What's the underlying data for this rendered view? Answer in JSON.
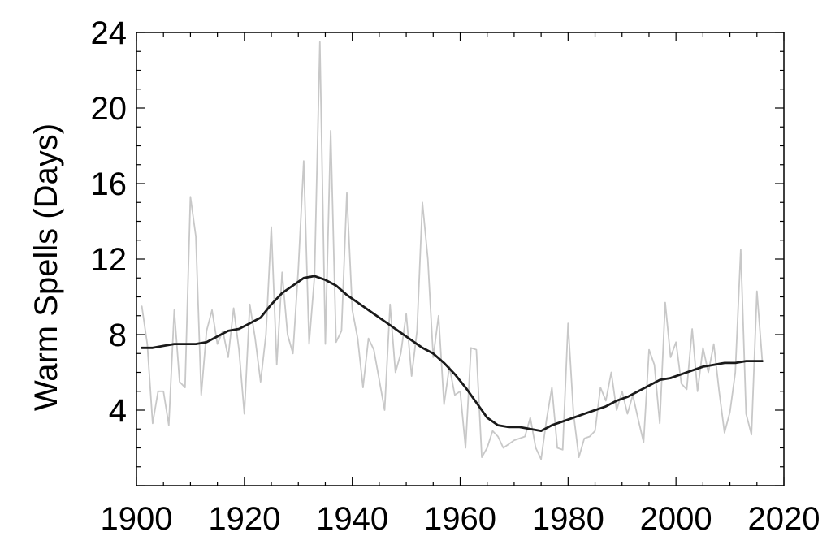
{
  "chart_data": {
    "type": "line",
    "title": "",
    "xlabel": "",
    "ylabel": "Warm Spells (Days)",
    "xlim": [
      1900,
      2020
    ],
    "ylim": [
      0,
      24
    ],
    "xticks": [
      1900,
      1920,
      1940,
      1960,
      1980,
      2000,
      2020
    ],
    "yticks": [
      4,
      8,
      12,
      16,
      20,
      24
    ],
    "grid": false,
    "legend": "none",
    "series": [
      {
        "role": "annual",
        "color": "#c8c8c8",
        "x": [
          1901,
          1902,
          1903,
          1904,
          1905,
          1906,
          1907,
          1908,
          1909,
          1910,
          1911,
          1912,
          1913,
          1914,
          1915,
          1916,
          1917,
          1918,
          1919,
          1920,
          1921,
          1922,
          1923,
          1924,
          1925,
          1926,
          1927,
          1928,
          1929,
          1930,
          1931,
          1932,
          1933,
          1934,
          1935,
          1936,
          1937,
          1938,
          1939,
          1940,
          1941,
          1942,
          1943,
          1944,
          1945,
          1946,
          1947,
          1948,
          1949,
          1950,
          1951,
          1952,
          1953,
          1954,
          1955,
          1956,
          1957,
          1958,
          1959,
          1960,
          1961,
          1962,
          1963,
          1964,
          1965,
          1966,
          1967,
          1968,
          1969,
          1970,
          1971,
          1972,
          1973,
          1974,
          1975,
          1976,
          1977,
          1978,
          1979,
          1980,
          1981,
          1982,
          1983,
          1984,
          1985,
          1986,
          1987,
          1988,
          1989,
          1990,
          1991,
          1992,
          1993,
          1994,
          1995,
          1996,
          1997,
          1998,
          1999,
          2000,
          2001,
          2002,
          2003,
          2004,
          2005,
          2006,
          2007,
          2008,
          2009,
          2010,
          2011,
          2012,
          2013,
          2014,
          2015,
          2016
        ],
        "y": [
          9.5,
          7.5,
          3.3,
          5.0,
          5.0,
          3.2,
          9.3,
          5.5,
          5.2,
          15.3,
          13.2,
          4.8,
          8.2,
          9.3,
          7.5,
          8.2,
          6.8,
          9.4,
          7.2,
          3.8,
          9.6,
          7.8,
          5.5,
          8.0,
          13.7,
          6.4,
          11.3,
          8.0,
          7.0,
          11.5,
          17.2,
          7.5,
          11.1,
          23.5,
          7.5,
          18.8,
          7.6,
          8.2,
          15.5,
          9.3,
          7.8,
          5.2,
          7.8,
          7.2,
          5.6,
          4.0,
          9.6,
          6.0,
          7.0,
          9.1,
          5.8,
          8.2,
          15.0,
          12.0,
          6.8,
          9.0,
          4.3,
          6.3,
          4.8,
          5.0,
          2.0,
          7.3,
          7.2,
          1.5,
          2.0,
          2.9,
          2.6,
          2.0,
          2.2,
          2.4,
          2.5,
          2.6,
          3.6,
          2.0,
          1.4,
          3.5,
          5.2,
          2.0,
          1.9,
          8.6,
          3.8,
          1.5,
          2.5,
          2.6,
          2.9,
          5.2,
          4.5,
          6.0,
          4.0,
          5.0,
          3.8,
          4.8,
          3.5,
          2.3,
          7.2,
          6.4,
          3.3,
          9.7,
          6.8,
          7.6,
          5.4,
          5.1,
          8.3,
          5.0,
          7.3,
          6.0,
          7.5,
          5.0,
          2.8,
          3.9,
          6.0,
          12.5,
          3.8,
          2.7,
          10.3,
          6.6
        ]
      },
      {
        "role": "smoothed",
        "color": "#1a1a1a",
        "x": [
          1901,
          1903,
          1905,
          1907,
          1909,
          1911,
          1913,
          1915,
          1917,
          1919,
          1921,
          1923,
          1925,
          1927,
          1929,
          1931,
          1933,
          1935,
          1937,
          1939,
          1941,
          1943,
          1945,
          1947,
          1949,
          1951,
          1953,
          1955,
          1957,
          1959,
          1961,
          1963,
          1965,
          1967,
          1969,
          1971,
          1973,
          1975,
          1977,
          1979,
          1981,
          1983,
          1985,
          1987,
          1989,
          1991,
          1993,
          1995,
          1997,
          1999,
          2001,
          2003,
          2005,
          2007,
          2009,
          2011,
          2013,
          2016
        ],
        "y": [
          7.3,
          7.3,
          7.4,
          7.5,
          7.5,
          7.5,
          7.6,
          7.9,
          8.2,
          8.3,
          8.6,
          8.9,
          9.6,
          10.2,
          10.6,
          11.0,
          11.1,
          10.9,
          10.6,
          10.1,
          9.7,
          9.3,
          8.9,
          8.5,
          8.1,
          7.7,
          7.3,
          7.0,
          6.5,
          5.9,
          5.2,
          4.4,
          3.6,
          3.2,
          3.1,
          3.1,
          3.0,
          2.9,
          3.2,
          3.4,
          3.6,
          3.8,
          4.0,
          4.2,
          4.5,
          4.7,
          5.0,
          5.3,
          5.6,
          5.7,
          5.9,
          6.1,
          6.3,
          6.4,
          6.5,
          6.5,
          6.6,
          6.6
        ]
      }
    ]
  }
}
